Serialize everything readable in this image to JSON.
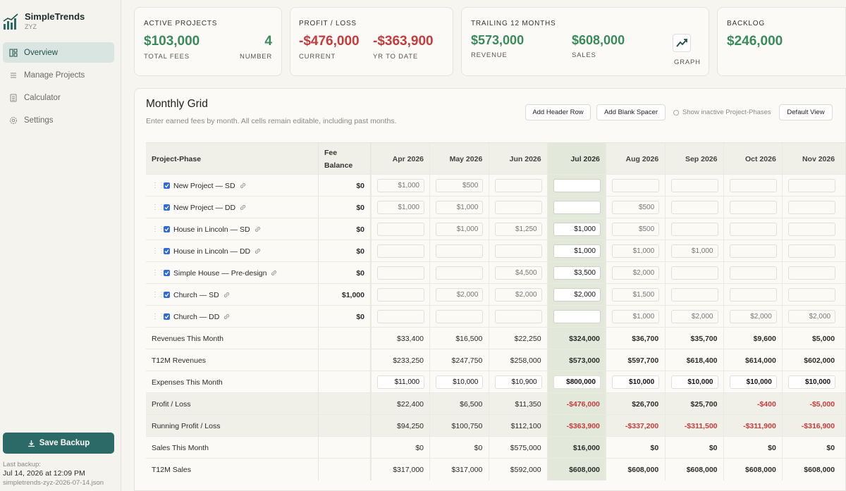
{
  "app": {
    "name": "SimpleTrends",
    "org": "ZYZ"
  },
  "nav": [
    {
      "label": "Overview",
      "icon": "overview-icon",
      "active": true
    },
    {
      "label": "Manage Projects",
      "icon": "list-icon"
    },
    {
      "label": "Calculator",
      "icon": "calculator-icon"
    },
    {
      "label": "Settings",
      "icon": "gear-icon"
    }
  ],
  "sidebar": {
    "save_label": "Save Backup",
    "last_backup_label": "Last backup:",
    "last_backup_time": "Jul 14, 2026 at 12:09 PM",
    "last_backup_file": "simpletrends-zyz-2026-07-14.json"
  },
  "cards": {
    "active": {
      "title": "ACTIVE PROJECTS",
      "fees": "$103,000",
      "fees_label": "TOTAL FEES",
      "number": "4",
      "number_label": "NUMBER"
    },
    "profit": {
      "title": "PROFIT / LOSS",
      "current": "-$476,000",
      "current_label": "CURRENT",
      "ytd": "-$363,900",
      "ytd_label": "YR TO DATE"
    },
    "trailing": {
      "title": "TRAILING 12 MONTHS",
      "revenue": "$573,000",
      "revenue_label": "REVENUE",
      "sales": "$608,000",
      "sales_label": "SALES",
      "graph_label": "GRAPH"
    },
    "backlog": {
      "title": "BACKLOG",
      "value": "$246,000"
    }
  },
  "grid_panel": {
    "title": "Monthly Grid",
    "description": "Enter earned fees by month. All cells remain editable, including past months.",
    "add_header": "Add Header Row",
    "add_spacer": "Add Blank Spacer",
    "show_inactive": "Show inactive Project-Phases",
    "default_view": "Default View"
  },
  "grid": {
    "col_project": "Project-Phase",
    "col_fee_1": "Fee",
    "col_fee_2": "Balance",
    "months": [
      "Apr 2026",
      "May 2026",
      "Jun 2026",
      "Jul 2026",
      "Aug 2026",
      "Sep 2026",
      "Oct 2026",
      "Nov 2026"
    ],
    "projects": [
      {
        "name": "New Project — SD",
        "balance": "$0",
        "values": [
          "$1,000",
          "$500",
          "",
          "",
          "",
          "",
          "",
          ""
        ]
      },
      {
        "name": "New Project — DD",
        "balance": "$0",
        "values": [
          "$1,000",
          "$1,000",
          "",
          "",
          "$500",
          "",
          "",
          ""
        ]
      },
      {
        "name": "House in Lincoln — SD",
        "balance": "$0",
        "values": [
          "",
          "$1,000",
          "$1,250",
          "$1,000",
          "$500",
          "",
          "",
          ""
        ]
      },
      {
        "name": "House in Lincoln — DD",
        "balance": "$0",
        "values": [
          "",
          "",
          "",
          "$1,000",
          "$1,000",
          "$1,000",
          "",
          ""
        ]
      },
      {
        "name": "Simple House — Pre-design",
        "balance": "$0",
        "values": [
          "",
          "",
          "$4,500",
          "$3,500",
          "$2,000",
          "",
          "",
          ""
        ]
      },
      {
        "name": "Church — SD",
        "balance": "$1,000",
        "values": [
          "",
          "$2,000",
          "$2,000",
          "$2,000",
          "$1,500",
          "",
          "",
          ""
        ]
      },
      {
        "name": "Church — DD",
        "balance": "$0",
        "values": [
          "",
          "",
          "",
          "",
          "$1,000",
          "$2,000",
          "$2,000",
          "$2,000"
        ]
      }
    ],
    "summary": [
      {
        "label": "Revenues This Month",
        "values": [
          "$33,400",
          "$16,500",
          "$22,250",
          "$324,000",
          "$36,700",
          "$35,700",
          "$9,600",
          "$5,000"
        ]
      },
      {
        "label": "T12M Revenues",
        "values": [
          "$233,250",
          "$247,750",
          "$258,000",
          "$573,000",
          "$597,700",
          "$618,400",
          "$614,000",
          "$602,000"
        ]
      },
      {
        "label": "Expenses This Month",
        "values": [
          "$11,000",
          "$10,000",
          "$10,900",
          "$800,000",
          "$10,000",
          "$10,000",
          "$10,000",
          "$10,000"
        ]
      },
      {
        "label": "Profit / Loss",
        "values": [
          "$22,400",
          "$6,500",
          "$11,350",
          "-$476,000",
          "$26,700",
          "$25,700",
          "-$400",
          "-$5,000"
        ]
      },
      {
        "label": "Running Profit / Loss",
        "values": [
          "$94,250",
          "$100,750",
          "$112,100",
          "-$363,900",
          "-$337,200",
          "-$311,500",
          "-$311,900",
          "-$316,900"
        ]
      },
      {
        "label": "Sales This Month",
        "values": [
          "$0",
          "$0",
          "$575,000",
          "$16,000",
          "$0",
          "$0",
          "$0",
          "$0"
        ]
      },
      {
        "label": "T12M Sales",
        "values": [
          "$317,000",
          "$317,000",
          "$592,000",
          "$608,000",
          "$608,000",
          "$608,000",
          "$608,000",
          "$608,000"
        ]
      }
    ]
  },
  "colors": {
    "accent": "#2c6a68",
    "positive": "#3a8a5a",
    "negative": "#c43c3c",
    "current_month_bg": "#e2e8da"
  }
}
